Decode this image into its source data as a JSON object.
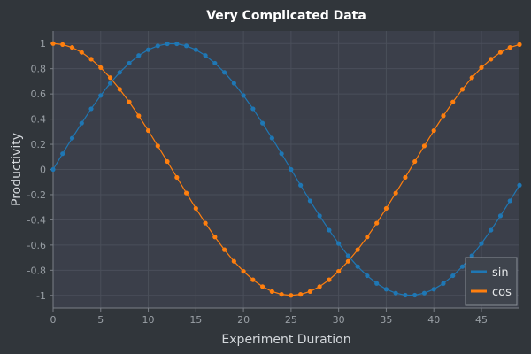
{
  "chart_data": {
    "type": "line",
    "title": "Very Complicated Data",
    "xlabel": "Experiment Duration",
    "ylabel": "Productivity",
    "xlim": [
      0,
      49
    ],
    "ylim": [
      -1.1,
      1.1
    ],
    "xticks": [
      0,
      5,
      10,
      15,
      20,
      25,
      30,
      35,
      40,
      45
    ],
    "yticks": [
      -1,
      -0.8,
      -0.6,
      -0.4,
      -0.2,
      0,
      0.2,
      0.4,
      0.6,
      0.8,
      1
    ],
    "grid": true,
    "legend_position": "bottom-right",
    "x": [
      0,
      1,
      2,
      3,
      4,
      5,
      6,
      7,
      8,
      9,
      10,
      11,
      12,
      13,
      14,
      15,
      16,
      17,
      18,
      19,
      20,
      21,
      22,
      23,
      24,
      25,
      26,
      27,
      28,
      29,
      30,
      31,
      32,
      33,
      34,
      35,
      36,
      37,
      38,
      39,
      40,
      41,
      42,
      43,
      44,
      45,
      46,
      47,
      48,
      49
    ],
    "series": [
      {
        "name": "sin",
        "color": "#1f77b4",
        "values": [
          0.0,
          0.125,
          0.249,
          0.368,
          0.482,
          0.588,
          0.685,
          0.771,
          0.844,
          0.905,
          0.951,
          0.982,
          0.998,
          0.998,
          0.982,
          0.951,
          0.905,
          0.844,
          0.771,
          0.685,
          0.588,
          0.482,
          0.368,
          0.249,
          0.125,
          0.0,
          -0.125,
          -0.249,
          -0.368,
          -0.482,
          -0.588,
          -0.685,
          -0.771,
          -0.844,
          -0.905,
          -0.951,
          -0.982,
          -0.998,
          -0.998,
          -0.982,
          -0.951,
          -0.905,
          -0.844,
          -0.771,
          -0.685,
          -0.588,
          -0.482,
          -0.368,
          -0.249,
          -0.125
        ]
      },
      {
        "name": "cos",
        "color": "#ff7f0e",
        "values": [
          1.0,
          0.992,
          0.969,
          0.93,
          0.876,
          0.809,
          0.729,
          0.637,
          0.536,
          0.426,
          0.309,
          0.187,
          0.063,
          -0.063,
          -0.187,
          -0.309,
          -0.426,
          -0.536,
          -0.637,
          -0.729,
          -0.809,
          -0.876,
          -0.93,
          -0.969,
          -0.992,
          -1.0,
          -0.992,
          -0.969,
          -0.93,
          -0.876,
          -0.809,
          -0.729,
          -0.637,
          -0.536,
          -0.426,
          -0.309,
          -0.187,
          -0.063,
          0.063,
          0.187,
          0.309,
          0.426,
          0.536,
          0.637,
          0.729,
          0.809,
          0.876,
          0.93,
          0.969,
          0.992
        ]
      }
    ]
  },
  "colors": {
    "background": "#31363b",
    "plot_background": "#3b3f4a",
    "grid": "#4a4f5a",
    "axis": "#7a7f87"
  }
}
